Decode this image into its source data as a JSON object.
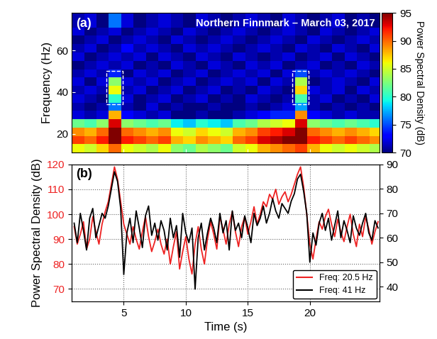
{
  "chart_data": [
    {
      "type": "heatmap",
      "panel_label": "(a)",
      "title": "Northern Finnmark – March 03, 2017",
      "y_label": "Frequency (Hz)",
      "x_edges": [
        0.8,
        1.8,
        2.8,
        3.8,
        4.8,
        5.8,
        6.8,
        7.8,
        8.8,
        9.8,
        10.8,
        11.8,
        12.8,
        13.8,
        14.8,
        15.8,
        16.8,
        17.8,
        18.8,
        19.8,
        20.8,
        21.8,
        22.8,
        23.8,
        24.8,
        25.6
      ],
      "y_edges": [
        11,
        15,
        19,
        23,
        27,
        31,
        35,
        39,
        43,
        47,
        51,
        55,
        59,
        63,
        67,
        71,
        78
      ],
      "cells": [
        [
          86,
          85,
          87,
          90,
          86,
          85,
          84,
          86,
          83,
          82,
          84,
          83,
          82,
          85,
          86,
          88,
          89,
          90,
          91,
          88,
          86,
          85,
          86,
          85,
          84
        ],
        [
          91,
          90,
          92,
          95,
          92,
          91,
          90,
          91,
          88,
          87,
          89,
          88,
          87,
          90,
          91,
          93,
          94,
          95,
          95,
          92,
          91,
          90,
          91,
          90,
          89
        ],
        [
          89,
          88,
          90,
          95,
          90,
          89,
          88,
          89,
          86,
          85,
          87,
          86,
          85,
          88,
          89,
          91,
          92,
          93,
          95,
          90,
          89,
          88,
          89,
          88,
          87
        ],
        [
          82,
          81,
          83,
          93,
          83,
          82,
          81,
          82,
          79,
          78,
          80,
          79,
          78,
          81,
          82,
          84,
          85,
          86,
          93,
          83,
          82,
          81,
          82,
          81,
          80
        ],
        [
          72,
          71,
          72,
          88,
          73,
          72,
          71,
          72,
          70,
          70,
          71,
          70,
          70,
          71,
          72,
          73,
          74,
          74,
          89,
          73,
          72,
          71,
          72,
          71,
          71
        ],
        [
          71,
          70,
          71,
          76,
          71,
          70,
          72,
          70,
          71,
          70,
          70,
          71,
          70,
          70,
          71,
          70,
          71,
          72,
          77,
          71,
          70,
          71,
          70,
          71,
          70
        ],
        [
          72,
          71,
          70,
          80,
          72,
          70,
          71,
          72,
          70,
          71,
          72,
          70,
          71,
          70,
          72,
          71,
          70,
          71,
          81,
          71,
          72,
          70,
          71,
          70,
          72
        ],
        [
          71,
          72,
          71,
          86,
          71,
          72,
          70,
          71,
          72,
          70,
          71,
          72,
          70,
          71,
          70,
          72,
          71,
          70,
          87,
          72,
          71,
          72,
          70,
          72,
          71
        ],
        [
          72,
          70,
          72,
          83,
          72,
          71,
          72,
          70,
          71,
          72,
          70,
          71,
          72,
          71,
          72,
          70,
          72,
          71,
          84,
          70,
          71,
          72,
          71,
          70,
          72
        ],
        [
          71,
          72,
          71,
          74,
          70,
          72,
          71,
          72,
          70,
          71,
          72,
          70,
          71,
          72,
          71,
          72,
          70,
          72,
          75,
          71,
          72,
          71,
          72,
          71,
          70
        ],
        [
          70,
          71,
          72,
          71,
          72,
          70,
          71,
          70,
          72,
          71,
          70,
          72,
          71,
          70,
          72,
          71,
          72,
          70,
          71,
          72,
          70,
          71,
          70,
          72,
          71
        ],
        [
          72,
          70,
          71,
          72,
          71,
          72,
          70,
          72,
          71,
          70,
          72,
          71,
          70,
          72,
          71,
          70,
          71,
          72,
          70,
          71,
          72,
          70,
          72,
          71,
          70
        ],
        [
          71,
          72,
          70,
          71,
          73,
          71,
          72,
          71,
          70,
          72,
          71,
          72,
          71,
          70,
          71,
          72,
          71,
          70,
          72,
          71,
          70,
          72,
          71,
          70,
          72
        ],
        [
          70,
          71,
          72,
          70,
          71,
          72,
          71,
          70,
          72,
          71,
          70,
          71,
          72,
          71,
          70,
          71,
          72,
          71,
          70,
          72,
          71,
          70,
          71,
          72,
          71
        ],
        [
          72,
          70,
          71,
          72,
          70,
          71,
          72,
          71,
          70,
          72,
          71,
          70,
          71,
          72,
          71,
          70,
          71,
          72,
          71,
          70,
          72,
          71,
          70,
          71,
          72
        ],
        [
          71,
          72,
          70,
          76,
          72,
          70,
          71,
          72,
          71,
          70,
          72,
          71,
          70,
          71,
          72,
          71,
          70,
          72,
          71,
          70,
          71,
          72,
          70,
          71,
          70
        ]
      ],
      "xlim": [
        0.8,
        25.6
      ],
      "xticks": [
        5,
        10,
        15,
        20
      ],
      "ylim": [
        11,
        78
      ],
      "yticks": [
        20,
        40,
        60
      ],
      "tick_labels": "y",
      "colorbar": {
        "range": [
          70,
          95
        ],
        "ticks": [
          70,
          75,
          80,
          85,
          90,
          95
        ],
        "label": "Power Spectral Density (dB)"
      },
      "highlight_boxes": [
        {
          "x": [
            3.6,
            4.9
          ],
          "y": [
            34,
            50
          ]
        },
        {
          "x": [
            18.6,
            19.9
          ],
          "y": [
            34,
            50
          ]
        }
      ]
    },
    {
      "type": "line",
      "panel_label": "(b)",
      "x_label": "Time (s)",
      "y_label": "Power Spectral Density (dB)",
      "x": [
        1,
        1.25,
        1.5,
        1.75,
        2,
        2.25,
        2.5,
        2.75,
        3,
        3.25,
        3.5,
        3.75,
        4,
        4.25,
        4.5,
        4.75,
        5,
        5.25,
        5.5,
        5.75,
        6,
        6.25,
        6.5,
        6.75,
        7,
        7.25,
        7.5,
        7.75,
        8,
        8.25,
        8.5,
        8.75,
        9,
        9.25,
        9.5,
        9.75,
        10,
        10.25,
        10.5,
        10.75,
        11,
        11.25,
        11.5,
        11.75,
        12,
        12.25,
        12.5,
        12.75,
        13,
        13.25,
        13.5,
        13.75,
        14,
        14.25,
        14.5,
        14.75,
        15,
        15.25,
        15.5,
        15.75,
        16,
        16.25,
        16.5,
        16.75,
        17,
        17.25,
        17.5,
        17.75,
        18,
        18.25,
        18.5,
        18.75,
        19,
        19.25,
        19.5,
        19.75,
        20,
        20.25,
        20.5,
        20.75,
        21,
        21.25,
        21.5,
        21.75,
        22,
        22.25,
        22.5,
        22.75,
        23,
        23.25,
        23.5,
        23.75,
        24,
        24.25,
        24.5,
        24.75,
        25,
        25.25,
        25.5
      ],
      "series": [
        {
          "name": "Freq: 20.5 Hz",
          "color": "#ee2222",
          "values": [
            95,
            88,
            92,
            97,
            86,
            90,
            99,
            93,
            88,
            96,
            101,
            105,
            112,
            119,
            114,
            105,
            96,
            92,
            88,
            95,
            90,
            86,
            93,
            99,
            91,
            85,
            89,
            94,
            88,
            84,
            90,
            80,
            87,
            93,
            78,
            85,
            91,
            82,
            76,
            88,
            95,
            86,
            80,
            90,
            97,
            92,
            86,
            99,
            94,
            88,
            96,
            101,
            93,
            87,
            95,
            99,
            92,
            97,
            103,
            96,
            100,
            105,
            103,
            108,
            106,
            110,
            104,
            107,
            109,
            105,
            108,
            112,
            116,
            119,
            111,
            100,
            88,
            82,
            90,
            97,
            94,
            99,
            102,
            96,
            91,
            98,
            93,
            89,
            95,
            100,
            92,
            87,
            96,
            91,
            99,
            94,
            88,
            93,
            97
          ]
        },
        {
          "name": "Freq: 41 Hz",
          "color": "#000000",
          "axis": "y2",
          "values": [
            66,
            58,
            70,
            63,
            55,
            68,
            72,
            60,
            65,
            70,
            68,
            73,
            80,
            87,
            83,
            72,
            45,
            62,
            68,
            58,
            71,
            64,
            56,
            69,
            73,
            61,
            66,
            59,
            67,
            63,
            55,
            68,
            60,
            65,
            52,
            70,
            62,
            58,
            64,
            39,
            60,
            66,
            55,
            62,
            68,
            64,
            58,
            70,
            62,
            67,
            55,
            71,
            63,
            66,
            60,
            69,
            64,
            58,
            70,
            65,
            68,
            73,
            66,
            70,
            76,
            71,
            68,
            74,
            72,
            70,
            75,
            78,
            84,
            86,
            79,
            70,
            50,
            62,
            57,
            66,
            70,
            63,
            68,
            59,
            65,
            71,
            60,
            67,
            63,
            58,
            69,
            64,
            61,
            66,
            70,
            62,
            59,
            67,
            64
          ]
        }
      ],
      "xlim": [
        0.8,
        25.6
      ],
      "xticks": [
        5,
        10,
        15,
        20
      ],
      "ylim": [
        65,
        120
      ],
      "yticks": [
        70,
        80,
        90,
        100,
        110,
        120
      ],
      "y2lim": [
        34,
        90
      ],
      "y2ticks": [
        40,
        50,
        60,
        70,
        80,
        90
      ],
      "grid": true,
      "legend": "lower right"
    }
  ]
}
